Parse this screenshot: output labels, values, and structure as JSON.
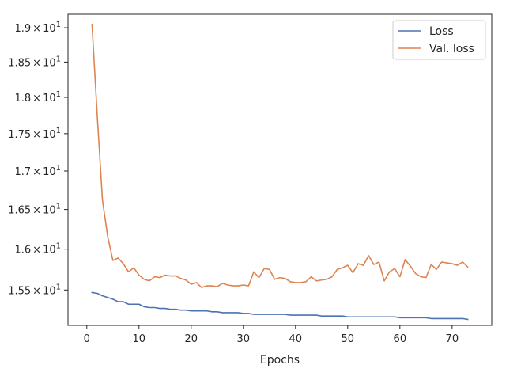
{
  "chart_data": {
    "type": "line",
    "title": "",
    "xlabel": "Epochs",
    "ylabel": "",
    "y_scale": "log",
    "xlim": [
      -3.6,
      77.6
    ],
    "ylim": [
      15.08,
      19.2
    ],
    "x_ticks": [
      0,
      10,
      20,
      30,
      40,
      50,
      60,
      70
    ],
    "y_ticks": [
      {
        "value": 15.5,
        "mantissa": "1.55",
        "times": "×",
        "base": "10",
        "exponent": "1"
      },
      {
        "value": 16.0,
        "mantissa": "1.6",
        "times": "×",
        "base": "10",
        "exponent": "1"
      },
      {
        "value": 16.5,
        "mantissa": "1.65",
        "times": "×",
        "base": "10",
        "exponent": "1"
      },
      {
        "value": 17.0,
        "mantissa": "1.7",
        "times": "×",
        "base": "10",
        "exponent": "1"
      },
      {
        "value": 17.5,
        "mantissa": "1.75",
        "times": "×",
        "base": "10",
        "exponent": "1"
      },
      {
        "value": 18.0,
        "mantissa": "1.8",
        "times": "×",
        "base": "10",
        "exponent": "1"
      },
      {
        "value": 18.5,
        "mantissa": "1.85",
        "times": "×",
        "base": "10",
        "exponent": "1"
      },
      {
        "value": 19.0,
        "mantissa": "1.9",
        "times": "×",
        "base": "10",
        "exponent": "1"
      }
    ],
    "grid": false,
    "legend_position": "top-right",
    "x": [
      1,
      2,
      3,
      4,
      5,
      6,
      7,
      8,
      9,
      10,
      11,
      12,
      13,
      14,
      15,
      16,
      17,
      18,
      19,
      20,
      21,
      22,
      23,
      24,
      25,
      26,
      27,
      28,
      29,
      30,
      31,
      32,
      33,
      34,
      35,
      36,
      37,
      38,
      39,
      40,
      41,
      42,
      43,
      44,
      45,
      46,
      47,
      48,
      49,
      50,
      51,
      52,
      53,
      54,
      55,
      56,
      57,
      58,
      59,
      60,
      61,
      62,
      63,
      64,
      65,
      66,
      67,
      68,
      69,
      70,
      71,
      72,
      73
    ],
    "series": [
      {
        "name": "Loss",
        "color": "#4c72b0",
        "values": [
          15.47,
          15.46,
          15.43,
          15.41,
          15.39,
          15.36,
          15.36,
          15.33,
          15.33,
          15.33,
          15.3,
          15.29,
          15.29,
          15.28,
          15.28,
          15.27,
          15.27,
          15.26,
          15.26,
          15.25,
          15.25,
          15.25,
          15.25,
          15.24,
          15.24,
          15.23,
          15.23,
          15.23,
          15.23,
          15.22,
          15.22,
          15.21,
          15.21,
          15.21,
          15.21,
          15.21,
          15.21,
          15.21,
          15.2,
          15.2,
          15.2,
          15.2,
          15.2,
          15.2,
          15.19,
          15.19,
          15.19,
          15.19,
          15.19,
          15.18,
          15.18,
          15.18,
          15.18,
          15.18,
          15.18,
          15.18,
          15.18,
          15.18,
          15.18,
          15.17,
          15.17,
          15.17,
          15.17,
          15.17,
          15.17,
          15.16,
          15.16,
          15.16,
          15.16,
          15.16,
          15.16,
          15.16,
          15.15
        ]
      },
      {
        "name": "Val. loss",
        "color": "#dd8452",
        "values": [
          19.05,
          17.75,
          16.62,
          16.16,
          15.86,
          15.89,
          15.82,
          15.72,
          15.77,
          15.68,
          15.63,
          15.61,
          15.66,
          15.65,
          15.68,
          15.67,
          15.67,
          15.64,
          15.62,
          15.57,
          15.59,
          15.53,
          15.55,
          15.55,
          15.54,
          15.58,
          15.56,
          15.55,
          15.55,
          15.56,
          15.55,
          15.72,
          15.65,
          15.76,
          15.75,
          15.63,
          15.65,
          15.64,
          15.6,
          15.59,
          15.59,
          15.6,
          15.66,
          15.61,
          15.62,
          15.63,
          15.66,
          15.75,
          15.77,
          15.8,
          15.71,
          15.82,
          15.8,
          15.92,
          15.81,
          15.84,
          15.61,
          15.72,
          15.76,
          15.66,
          15.87,
          15.79,
          15.7,
          15.66,
          15.65,
          15.81,
          15.75,
          15.84,
          15.83,
          15.82,
          15.8,
          15.84,
          15.78
        ]
      }
    ]
  }
}
